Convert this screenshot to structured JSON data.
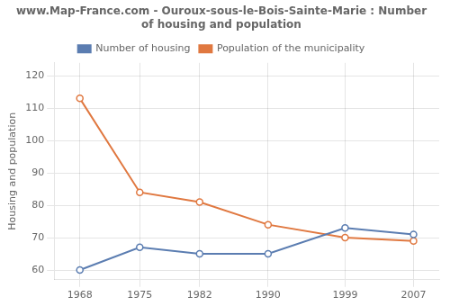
{
  "chart_data": {
    "type": "line",
    "title": "www.Map-France.com - Ouroux-sous-le-Bois-Sainte-Marie : Number of housing and population",
    "y_label": "Housing and population",
    "x": [
      1968,
      1975,
      1982,
      1990,
      1999,
      2007
    ],
    "series": [
      {
        "name": "Number of housing",
        "color": "#5b7db1",
        "values": [
          60,
          67,
          65,
          65,
          73,
          71
        ]
      },
      {
        "name": "Population of the municipality",
        "color": "#e07840",
        "values": [
          113,
          84,
          81,
          74,
          70,
          69
        ]
      }
    ],
    "xlim": [
      1965,
      2010
    ],
    "xticks": [
      1968,
      1975,
      1982,
      1990,
      1999,
      2007
    ],
    "ylim": [
      57,
      124
    ],
    "yticks": [
      60,
      70,
      80,
      90,
      100,
      110,
      120
    ],
    "grid": true,
    "legend": "top",
    "marker": "circle"
  }
}
